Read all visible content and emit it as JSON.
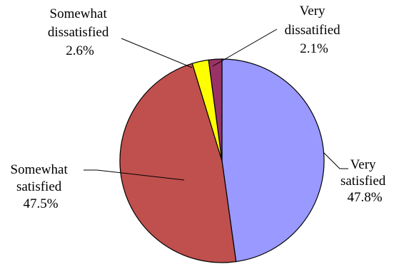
{
  "chart_data": {
    "type": "pie",
    "title": "",
    "start_angle_deg": 0,
    "direction": "clockwise",
    "slices": [
      {
        "name": "Very satisfied",
        "label_lines": [
          "Very",
          "satisfied"
        ],
        "value": 47.8,
        "value_label": "47.8%",
        "color": "#9999ff"
      },
      {
        "name": "Somewhat satisfied",
        "label_lines": [
          "Somewhat",
          "satisfied"
        ],
        "value": 47.5,
        "value_label": "47.5%",
        "color": "#c0504d"
      },
      {
        "name": "Somewhat dissatisfied",
        "label_lines": [
          "Somewhat",
          "dissatisfied"
        ],
        "value": 2.6,
        "value_label": "2.6%",
        "color": "#ffff00"
      },
      {
        "name": "Very dissatisfied",
        "label_lines": [
          "Very",
          "dissatified"
        ],
        "value": 2.1,
        "value_label": "2.1%",
        "color": "#993366"
      }
    ]
  }
}
